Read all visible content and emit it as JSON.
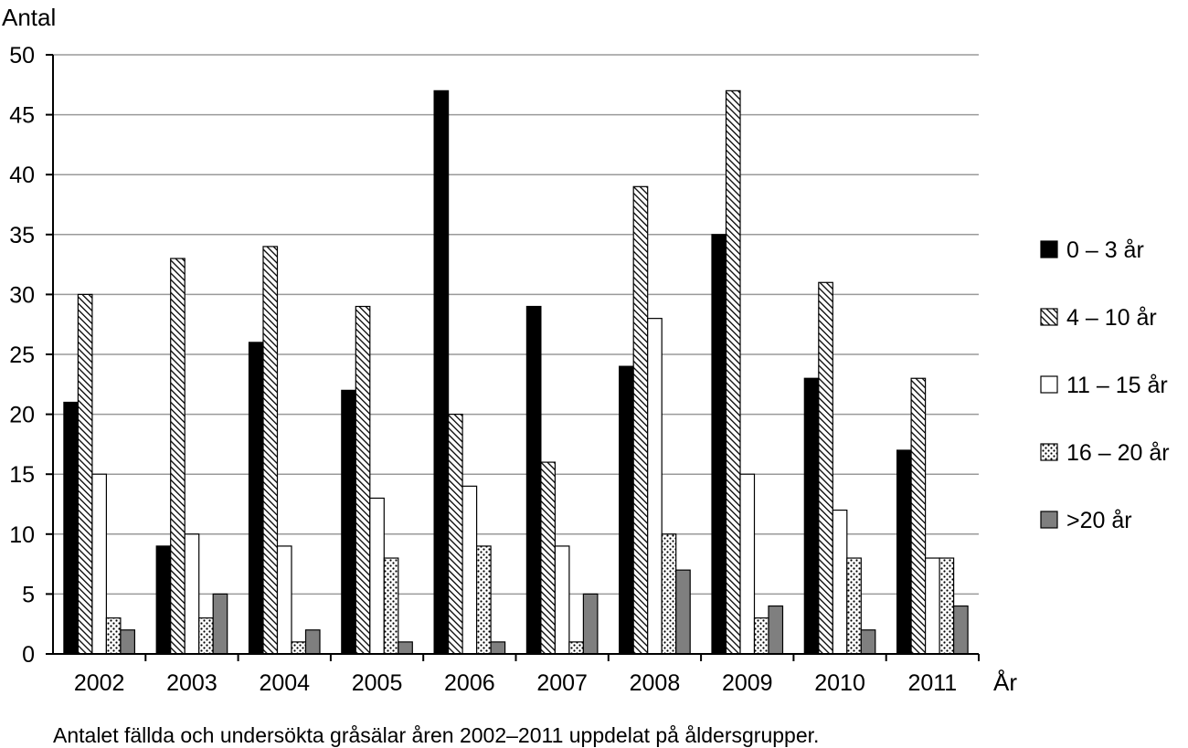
{
  "chart_data": {
    "type": "bar",
    "title": "",
    "caption": "Antalet fällda och undersökta gråsälar åren 2002–2011 uppdelat på åldersgrupper.",
    "ylabel": "Antal",
    "xlabel": "År",
    "ylim": [
      0,
      50
    ],
    "yticks": [
      0,
      5,
      10,
      15,
      20,
      25,
      30,
      35,
      40,
      45,
      50
    ],
    "grid": true,
    "legend_position": "right",
    "categories": [
      "2002",
      "2003",
      "2004",
      "2005",
      "2006",
      "2007",
      "2008",
      "2009",
      "2010",
      "2011"
    ],
    "series": [
      {
        "name": "0 – 3 år",
        "pattern": "solid-black",
        "values": [
          21,
          9,
          26,
          22,
          47,
          29,
          24,
          35,
          23,
          17
        ]
      },
      {
        "name": "4 – 10 år",
        "pattern": "diagonal-hatch",
        "values": [
          30,
          33,
          34,
          29,
          20,
          16,
          39,
          47,
          31,
          23
        ]
      },
      {
        "name": "11 – 15 år",
        "pattern": "white",
        "values": [
          15,
          10,
          9,
          13,
          14,
          9,
          28,
          15,
          12,
          8
        ]
      },
      {
        "name": "16 – 20 år",
        "pattern": "dotted",
        "values": [
          3,
          3,
          1,
          8,
          9,
          1,
          10,
          3,
          8,
          8
        ]
      },
      {
        "name": ">20 år",
        "pattern": "solid-gray",
        "values": [
          2,
          5,
          2,
          1,
          1,
          5,
          7,
          4,
          2,
          4
        ]
      }
    ],
    "colors": {
      "black": "#000000",
      "gray": "#7f7f7f",
      "grid": "#9a9a9a",
      "white": "#ffffff"
    }
  }
}
